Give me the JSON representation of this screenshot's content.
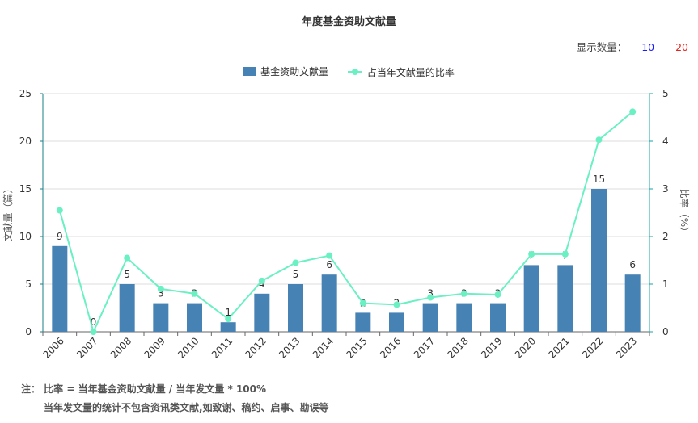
{
  "title": "年度基金资助文献量",
  "show_count": {
    "label": "显示数量：",
    "options": [
      "10",
      "20"
    ]
  },
  "colors": {
    "bar": "#4682b4",
    "line": "#6bf0c3",
    "axis_left": "#1a7f8a",
    "axis_right": "#1aa6a6"
  },
  "chart_data": {
    "type": "bar+line",
    "categories": [
      "2006",
      "2007",
      "2008",
      "2009",
      "2010",
      "2011",
      "2012",
      "2013",
      "2014",
      "2015",
      "2016",
      "2017",
      "2018",
      "2019",
      "2020",
      "2021",
      "2022",
      "2023"
    ],
    "series": [
      {
        "name": "基金资助文献量",
        "type": "bar",
        "axis": "left",
        "values": [
          9,
          0,
          5,
          3,
          3,
          1,
          4,
          5,
          6,
          2,
          2,
          3,
          3,
          3,
          7,
          7,
          15,
          6
        ]
      },
      {
        "name": "占当年文献量的比率",
        "type": "line",
        "axis": "right",
        "values": [
          2.55,
          0,
          1.55,
          0.9,
          0.8,
          0.27,
          1.07,
          1.45,
          1.6,
          0.6,
          0.57,
          0.72,
          0.8,
          0.78,
          1.63,
          1.63,
          4.03,
          4.62
        ]
      }
    ],
    "ylabel": "文献量（篇）",
    "ylabel_right": "比率（%）",
    "ylim": [
      0,
      25
    ],
    "yticks": [
      0,
      5,
      10,
      15,
      20,
      25
    ],
    "ylim_right": [
      0,
      5
    ],
    "yticks_right": [
      0,
      1,
      2,
      3,
      4,
      5
    ],
    "grid": true,
    "legend_position": "top-center"
  },
  "notes": {
    "line1": "注： 比率 = 当年基金资助文献量 / 当年发文量 * 100%",
    "line2": "当年发文量的统计不包含资讯类文献,如致谢、稿约、启事、勘误等"
  }
}
